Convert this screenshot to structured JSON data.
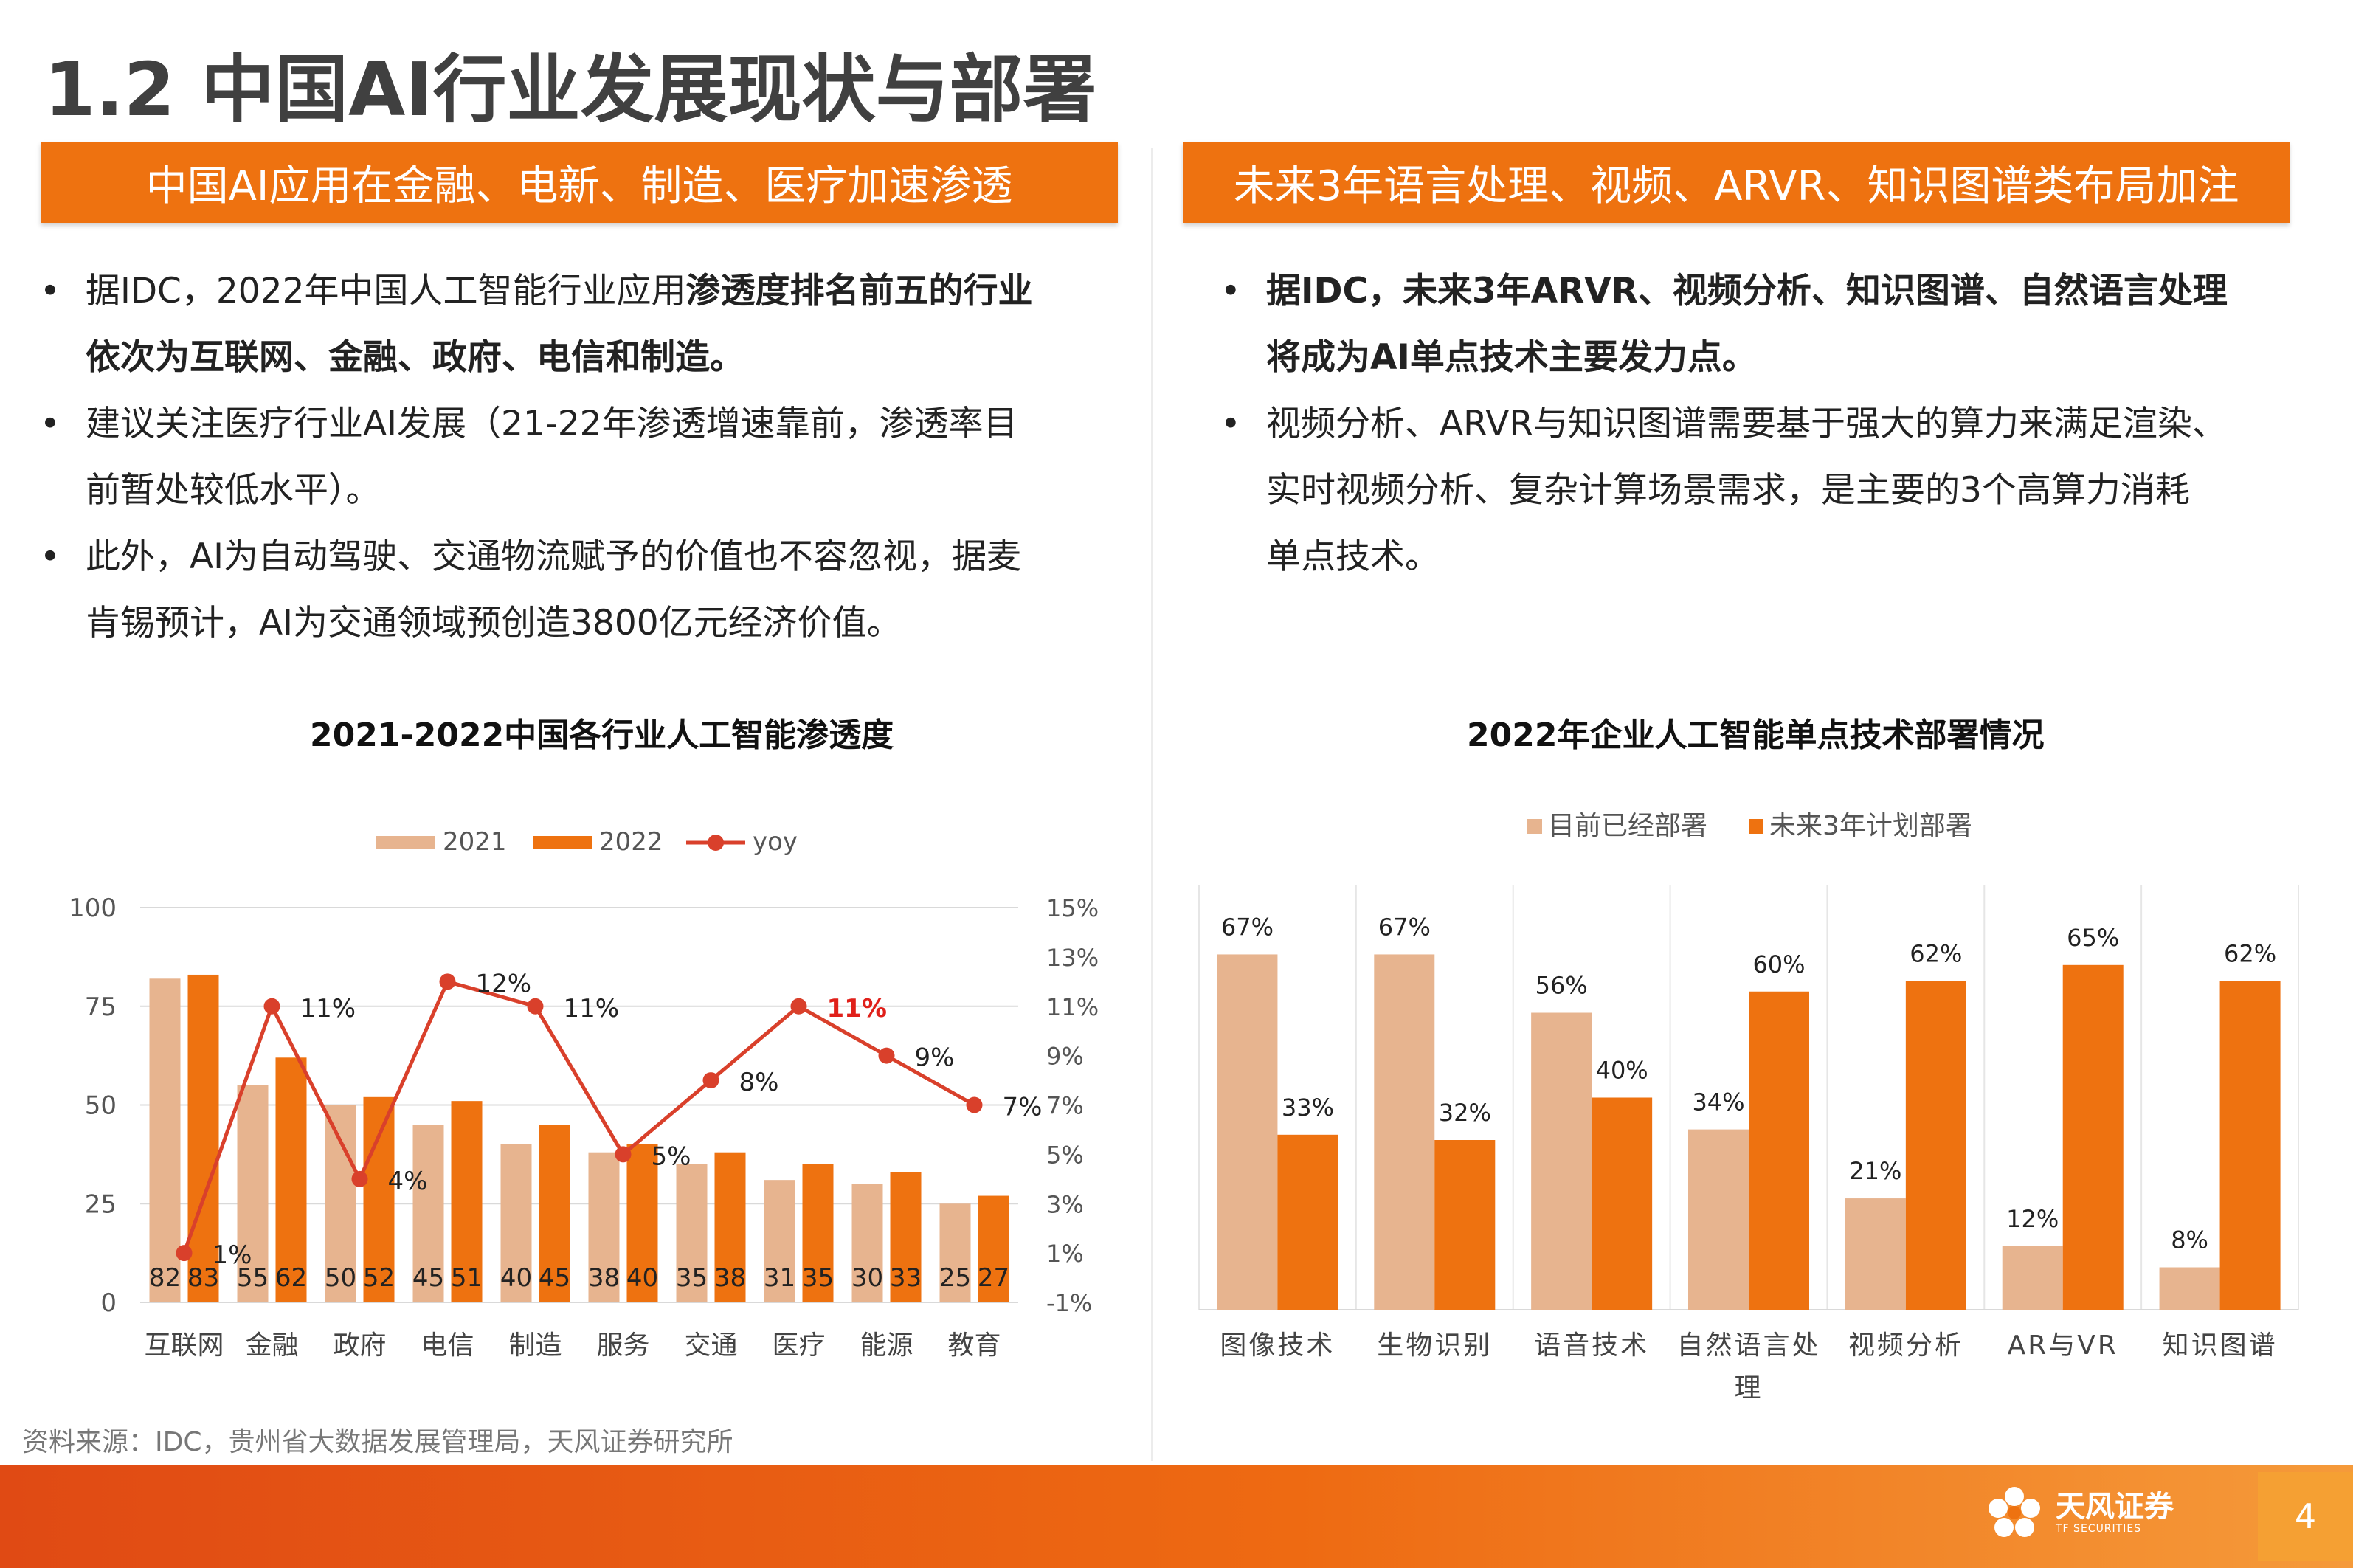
{
  "page_title": "1.2 中国AI行业发展现状与部署",
  "left": {
    "banner": "中国AI应用在金融、电新、制造、医疗加速渗透",
    "bullets": [
      {
        "dot": "•",
        "lines": [
          [
            {
              "t": "据IDC，2022年中国人工智能行业应用",
              "b": false
            },
            {
              "t": "渗透度排名前五的行业",
              "b": true
            }
          ],
          [
            {
              "t": "依次为互联网、金融、政府、电信和制造。",
              "b": true
            }
          ]
        ]
      },
      {
        "dot": "•",
        "lines": [
          [
            {
              "t": "建议关注医疗行业AI发展（21-22年渗透增速靠前，渗透率目",
              "b": false
            }
          ],
          [
            {
              "t": "前暂处较低水平）。",
              "b": false
            }
          ]
        ]
      },
      {
        "dot": "•",
        "lines": [
          [
            {
              "t": "此外，AI为自动驾驶、交通物流赋予的价值也不容忽视，据麦",
              "b": false
            }
          ],
          [
            {
              "t": "肯锡预计，AI为交通领域预创造3800亿元经济价值。",
              "b": false
            }
          ]
        ]
      }
    ]
  },
  "right": {
    "banner": "未来3年语言处理、视频、ARVR、知识图谱类布局加注",
    "bullets": [
      {
        "dot": "•",
        "lines": [
          [
            {
              "t": "据IDC，未来3年ARVR、视频分析、知识图谱、自然语言处理",
              "b": true
            }
          ],
          [
            {
              "t": "将成为AI单点技术主要发力点。",
              "b": true
            }
          ]
        ]
      },
      {
        "dot": "•",
        "lines": [
          [
            {
              "t": "视频分析、ARVR与知识图谱需要基于强大的算力来满足渲染、",
              "b": false
            }
          ],
          [
            {
              "t": "实时视频分析、复杂计算场景需求，是主要的3个高算力消耗",
              "b": false
            }
          ],
          [
            {
              "t": "单点技术。",
              "b": false
            }
          ]
        ]
      }
    ]
  },
  "chart_data": [
    {
      "type": "bar",
      "title": "2021-2022中国各行业人工智能渗透度",
      "categories": [
        "互联网",
        "金融",
        "政府",
        "电信",
        "制造",
        "服务",
        "交通",
        "医疗",
        "能源",
        "教育"
      ],
      "series": [
        {
          "name": "2021",
          "type": "bar",
          "color": "#E7B48F",
          "values": [
            82,
            55,
            50,
            45,
            40,
            38,
            35,
            31,
            30,
            25
          ]
        },
        {
          "name": "2022",
          "type": "bar",
          "color": "#EE7210",
          "values": [
            83,
            62,
            52,
            51,
            45,
            40,
            38,
            35,
            33,
            27
          ]
        },
        {
          "name": "yoy",
          "type": "line",
          "axis": "right",
          "color": "#D9402B",
          "values": [
            1,
            11,
            4,
            12,
            11,
            5,
            8,
            11,
            9,
            7
          ],
          "labels": [
            "1%",
            "11%",
            "4%",
            "12%",
            "11%",
            "5%",
            "8%",
            "11%",
            "9%",
            "7%"
          ],
          "highlight_index": 7
        }
      ],
      "ylim": [
        0,
        100
      ],
      "yticks": [
        "0",
        "25",
        "50",
        "75",
        "100"
      ],
      "y2lim": [
        -1,
        15
      ],
      "y2ticks": [
        "-1%",
        "1%",
        "3%",
        "5%",
        "7%",
        "9%",
        "11%",
        "13%",
        "15%"
      ],
      "legend_position": "top",
      "grid": true
    },
    {
      "type": "bar",
      "title": "2022年企业人工智能单点技术部署情况",
      "categories": [
        "图像技术",
        "生物识别",
        "语音技术",
        "自然语言处理",
        "视频分析",
        "AR与VR",
        "知识图谱"
      ],
      "category_lines": [
        [
          "图像技术"
        ],
        [
          "生物识别"
        ],
        [
          "语音技术"
        ],
        [
          "自然语言处",
          "理"
        ],
        [
          "视频分析"
        ],
        [
          "AR与VR"
        ],
        [
          "知识图谱"
        ]
      ],
      "series": [
        {
          "name": "目前已经部署",
          "color": "#E7B48F",
          "values": [
            67,
            67,
            56,
            34,
            21,
            12,
            8
          ]
        },
        {
          "name": "未来3年计划部署",
          "color": "#EE7210",
          "values": [
            33,
            32,
            40,
            60,
            62,
            65,
            62
          ]
        }
      ],
      "ylim": [
        0,
        80
      ],
      "legend_position": "top",
      "grid": false
    }
  ],
  "source": "资料来源：IDC，贵州省大数据发展管理局，天风证券研究所",
  "footer": {
    "logo_main": "天风证券",
    "logo_sub": "TF SECURITIES",
    "page_number": "4"
  }
}
